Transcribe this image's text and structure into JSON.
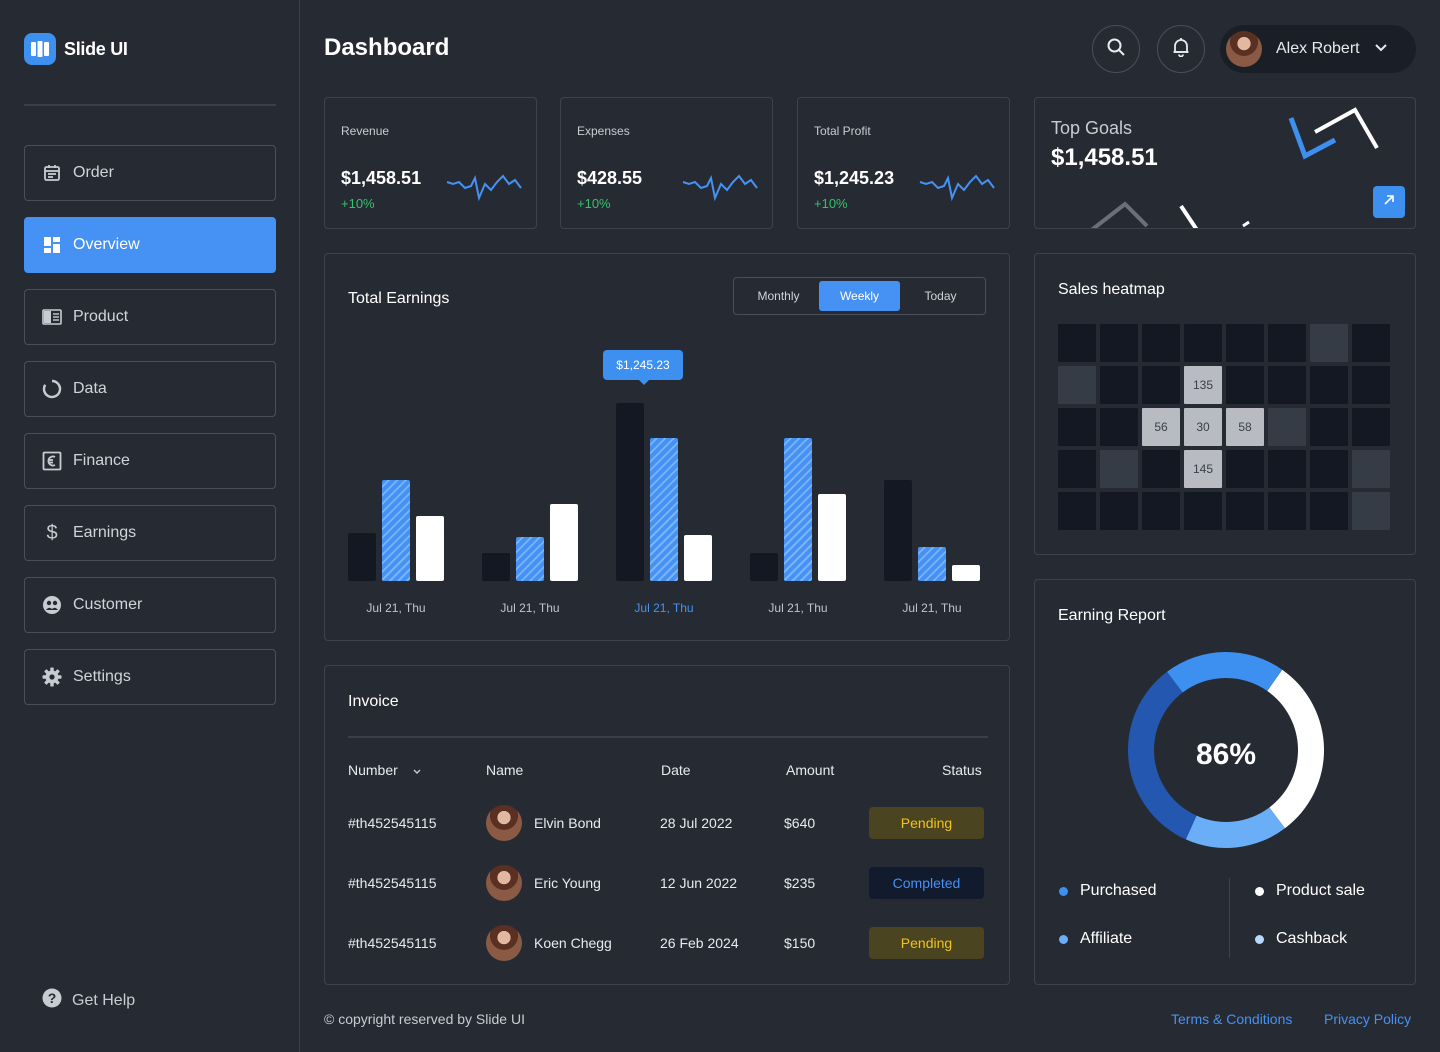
{
  "brand": {
    "name": "Slide UI"
  },
  "sidebar": {
    "items": [
      {
        "label": "Order",
        "icon": "calendar-icon"
      },
      {
        "label": "Overview",
        "icon": "grid-icon",
        "active": true
      },
      {
        "label": "Product",
        "icon": "product-icon"
      },
      {
        "label": "Data",
        "icon": "loader-icon"
      },
      {
        "label": "Finance",
        "icon": "euro-icon"
      },
      {
        "label": "Earnings",
        "icon": "dollar-icon"
      },
      {
        "label": "Customer",
        "icon": "customer-icon"
      },
      {
        "label": "Settings",
        "icon": "gear-icon"
      }
    ],
    "help_label": "Get Help"
  },
  "header": {
    "title": "Dashboard",
    "user_name": "Alex Robert"
  },
  "kpis": [
    {
      "label": "Revenue",
      "value": "$1,458.51",
      "change": "+10%"
    },
    {
      "label": "Expenses",
      "value": "$428.55",
      "change": "+10%"
    },
    {
      "label": "Total Profit",
      "value": "$1,245.23",
      "change": "+10%"
    }
  ],
  "goals": {
    "title": "Top Goals",
    "value": "$1,458.51"
  },
  "earnings": {
    "title": "Total Earnings",
    "tabs": [
      "Monthly",
      "Weekly",
      "Today"
    ],
    "active_tab": "Weekly",
    "tooltip": "$1,245.23"
  },
  "chart_data": {
    "type": "bar",
    "title": "Total Earnings",
    "categories": [
      "Jul 21, Thu",
      "Jul 21, Thu",
      "Jul 21, Thu",
      "Jul 21, Thu",
      "Jul 21, Thu"
    ],
    "highlight_index": 2,
    "ylim": [
      0,
      100
    ],
    "series": [
      {
        "name": "dark",
        "color": "#141822",
        "values": [
          24,
          14,
          90,
          14,
          51
        ]
      },
      {
        "name": "blue",
        "color": "#4591f4",
        "values": [
          51,
          22,
          72,
          72,
          17
        ]
      },
      {
        "name": "white",
        "color": "#ffffff",
        "values": [
          33,
          39,
          23,
          44,
          8
        ]
      }
    ]
  },
  "heatmap": {
    "title": "Sales heatmap",
    "rows": [
      [
        "d",
        "d",
        "d",
        "d",
        "d",
        "d",
        "m",
        "d"
      ],
      [
        "m",
        "d",
        "d",
        "135",
        "d",
        "d",
        "d",
        "d"
      ],
      [
        "d",
        "d",
        "56",
        "30",
        "58",
        "m",
        "d",
        "d"
      ],
      [
        "d",
        "m",
        "d",
        "145",
        "d",
        "d",
        "d",
        "m"
      ],
      [
        "d",
        "d",
        "d",
        "d",
        "d",
        "d",
        "d",
        "m"
      ]
    ]
  },
  "invoice": {
    "title": "Invoice",
    "headers": {
      "number": "Number",
      "name": "Name",
      "date": "Date",
      "amount": "Amount",
      "status": "Status"
    },
    "rows": [
      {
        "number": "#th452545115",
        "name": "Elvin Bond",
        "date": "28 Jul 2022",
        "amount": "$640",
        "status": "Pending"
      },
      {
        "number": "#th452545115",
        "name": "Eric Young",
        "date": "12 Jun 2022",
        "amount": "$235",
        "status": "Completed"
      },
      {
        "number": "#th452545115",
        "name": "Koen Chegg",
        "date": "26 Feb 2024",
        "amount": "$150",
        "status": "Pending"
      }
    ]
  },
  "report": {
    "title": "Earning Report",
    "percent": "86%",
    "segments": [
      {
        "name": "Product sale",
        "value": 30,
        "color": "#ffffff"
      },
      {
        "name": "Affiliate",
        "value": 17,
        "color": "#6aaef8"
      },
      {
        "name": "Purchased",
        "value": 33,
        "color": "#2458b0"
      },
      {
        "name": "Cashback",
        "value": 20,
        "color": "#3d8ff0"
      }
    ],
    "legend": [
      {
        "label": "Purchased",
        "color": "#3d8ff0"
      },
      {
        "label": "Product sale",
        "color": "#ffffff"
      },
      {
        "label": "Affiliate",
        "color": "#6aaef8"
      },
      {
        "label": "Cashback",
        "color": "#b8d8fc"
      }
    ]
  },
  "footer": {
    "copyright": "© copyright reserved by Slide UI",
    "terms": "Terms & Conditions",
    "privacy": "Privacy Policy"
  }
}
